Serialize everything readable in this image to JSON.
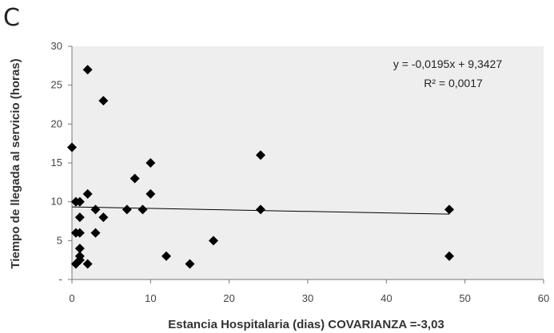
{
  "panel_label": "C",
  "chart_data": {
    "type": "scatter",
    "xlabel": "Estancia Hospitalaria (dias) COVARIANZA =-3,03",
    "ylabel": "Tiempo de llegada al servicio (horas)",
    "xlim": [
      0,
      60
    ],
    "ylim": [
      0,
      30
    ],
    "x_ticks": [
      0,
      10,
      20,
      30,
      40,
      50,
      60
    ],
    "y_ticks": [
      0,
      5,
      10,
      15,
      20,
      25,
      30
    ],
    "y_tick_labels": [
      "-",
      "5",
      "10",
      "15",
      "20",
      "25",
      "30"
    ],
    "grid": false,
    "background": "#eeeeee",
    "marker": "diamond",
    "marker_color": "#000000",
    "points": [
      {
        "x": 0,
        "y": 17
      },
      {
        "x": 0.5,
        "y": 2
      },
      {
        "x": 0.5,
        "y": 6
      },
      {
        "x": 0.5,
        "y": 10
      },
      {
        "x": 1,
        "y": 2.5
      },
      {
        "x": 1,
        "y": 3
      },
      {
        "x": 1,
        "y": 4
      },
      {
        "x": 1,
        "y": 6
      },
      {
        "x": 1,
        "y": 8
      },
      {
        "x": 1,
        "y": 10
      },
      {
        "x": 2,
        "y": 2
      },
      {
        "x": 2,
        "y": 11
      },
      {
        "x": 2,
        "y": 27
      },
      {
        "x": 3,
        "y": 6
      },
      {
        "x": 3,
        "y": 9
      },
      {
        "x": 4,
        "y": 8
      },
      {
        "x": 4,
        "y": 23
      },
      {
        "x": 7,
        "y": 9
      },
      {
        "x": 8,
        "y": 13
      },
      {
        "x": 9,
        "y": 9
      },
      {
        "x": 10,
        "y": 11
      },
      {
        "x": 10,
        "y": 15
      },
      {
        "x": 12,
        "y": 3
      },
      {
        "x": 15,
        "y": 2
      },
      {
        "x": 18,
        "y": 5
      },
      {
        "x": 24,
        "y": 9
      },
      {
        "x": 24,
        "y": 16
      },
      {
        "x": 48,
        "y": 3
      },
      {
        "x": 48,
        "y": 9
      }
    ],
    "trendline": {
      "slope": -0.0195,
      "intercept": 9.3427,
      "x_range": [
        0,
        48
      ],
      "equation_label": "y = -0,0195x + 9,3427",
      "r2_label": "R² = 0,0017"
    }
  }
}
